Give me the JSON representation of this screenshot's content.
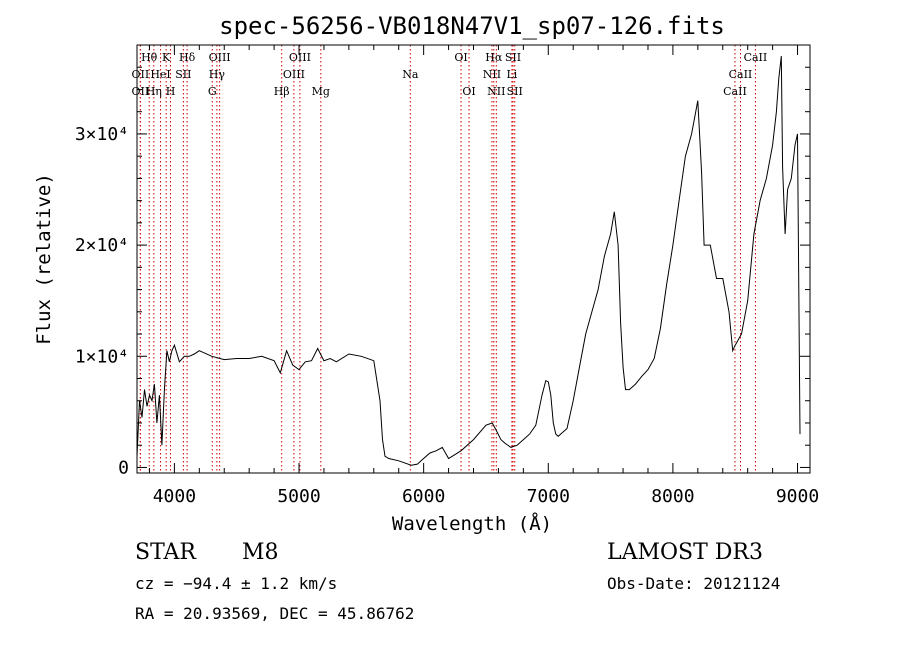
{
  "chart_data": {
    "type": "line",
    "title": "spec-56256-VB018N47V1_sp07-126.fits",
    "xlabel": "Wavelength (Å)",
    "ylabel": "Flux (relative)",
    "xlim": [
      3700,
      9100
    ],
    "ylim": [
      -500,
      38000
    ],
    "x_ticks": [
      {
        "value": 4000,
        "label": "4000"
      },
      {
        "value": 5000,
        "label": "5000"
      },
      {
        "value": 6000,
        "label": "6000"
      },
      {
        "value": 7000,
        "label": "7000"
      },
      {
        "value": 8000,
        "label": "8000"
      },
      {
        "value": 9000,
        "label": "9000"
      }
    ],
    "y_ticks": [
      {
        "value": 0,
        "label": "0"
      },
      {
        "value": 10000,
        "label": "1×10⁴"
      },
      {
        "value": 20000,
        "label": "2×10⁴"
      },
      {
        "value": 30000,
        "label": "3×10⁴"
      }
    ],
    "series": [
      {
        "name": "spectrum",
        "x": [
          3700,
          3720,
          3740,
          3760,
          3780,
          3800,
          3820,
          3840,
          3860,
          3880,
          3900,
          3920,
          3940,
          3960,
          3980,
          4000,
          4040,
          4080,
          4120,
          4160,
          4200,
          4300,
          4400,
          4500,
          4600,
          4700,
          4800,
          4850,
          4900,
          4950,
          5000,
          5050,
          5100,
          5150,
          5200,
          5250,
          5300,
          5400,
          5500,
          5600,
          5650,
          5670,
          5690,
          5720,
          5800,
          5900,
          5950,
          6000,
          6050,
          6100,
          6150,
          6200,
          6300,
          6400,
          6500,
          6550,
          6580,
          6620,
          6650,
          6700,
          6750,
          6800,
          6850,
          6900,
          6950,
          6980,
          7000,
          7020,
          7040,
          7060,
          7080,
          7100,
          7150,
          7200,
          7250,
          7300,
          7350,
          7400,
          7450,
          7500,
          7530,
          7560,
          7580,
          7600,
          7620,
          7650,
          7700,
          7750,
          7800,
          7850,
          7900,
          7950,
          8000,
          8050,
          8100,
          8150,
          8200,
          8230,
          8250,
          8300,
          8350,
          8400,
          8450,
          8480,
          8500,
          8550,
          8600,
          8650,
          8700,
          8750,
          8800,
          8830,
          8850,
          8870,
          8880,
          8900,
          8920,
          8950,
          8980,
          9000,
          9020
        ],
        "y": [
          1000,
          6000,
          4500,
          7000,
          5500,
          6500,
          6000,
          7500,
          4000,
          6500,
          2000,
          7000,
          10500,
          9500,
          10500,
          11000,
          9500,
          10000,
          10000,
          10200,
          10500,
          10000,
          9700,
          9800,
          9800,
          10000,
          9600,
          8500,
          10500,
          9200,
          8800,
          9500,
          9600,
          10700,
          9600,
          9800,
          9500,
          10200,
          10000,
          9600,
          6000,
          2500,
          1000,
          800,
          600,
          200,
          300,
          800,
          1300,
          1500,
          1800,
          800,
          1500,
          2500,
          3800,
          4000,
          3400,
          2500,
          2200,
          1800,
          2000,
          2500,
          3000,
          3800,
          6500,
          7800,
          7700,
          6500,
          4000,
          3000,
          2800,
          3000,
          3500,
          6000,
          9000,
          12000,
          14000,
          16000,
          19000,
          21000,
          23000,
          20000,
          13000,
          9000,
          7000,
          7000,
          7500,
          8200,
          8800,
          9800,
          12500,
          16500,
          20000,
          24000,
          28000,
          30000,
          33000,
          26500,
          20000,
          20000,
          17000,
          17000,
          14000,
          10500,
          11000,
          12000,
          15000,
          21000,
          24000,
          26000,
          29000,
          32000,
          35000,
          37000,
          27000,
          21000,
          25000,
          26000,
          29000,
          30000,
          3000
        ]
      }
    ],
    "lines": [
      {
        "label": "Hθ",
        "wave": 3798,
        "row": 1
      },
      {
        "label": "OII",
        "wave": 3727,
        "row": 2
      },
      {
        "label": "OII",
        "wave": 3727,
        "row": 3
      },
      {
        "label": "K",
        "wave": 3934,
        "row": 1
      },
      {
        "label": "HeI",
        "wave": 3889,
        "row": 2
      },
      {
        "label": "Hη",
        "wave": 3835,
        "row": 3
      },
      {
        "label": "H",
        "wave": 3969,
        "row": 3
      },
      {
        "label": "Hδ",
        "wave": 4102,
        "row": 1
      },
      {
        "label": "SII",
        "wave": 4072,
        "row": 2
      },
      {
        "label": "OIII",
        "wave": 4363,
        "row": 1
      },
      {
        "label": "Hγ",
        "wave": 4341,
        "row": 2
      },
      {
        "label": "G",
        "wave": 4304,
        "row": 3
      },
      {
        "label": "OIII",
        "wave": 5007,
        "row": 1
      },
      {
        "label": "OIII",
        "wave": 4959,
        "row": 2
      },
      {
        "label": "Hβ",
        "wave": 4861,
        "row": 3
      },
      {
        "label": "Mg",
        "wave": 5175,
        "row": 3
      },
      {
        "label": "Na",
        "wave": 5893,
        "row": 2
      },
      {
        "label": "OI",
        "wave": 6300,
        "row": 1
      },
      {
        "label": "OI",
        "wave": 6364,
        "row": 3
      },
      {
        "label": "Hα",
        "wave": 6563,
        "row": 1
      },
      {
        "label": "SII",
        "wave": 6717,
        "row": 1
      },
      {
        "label": "NII",
        "wave": 6548,
        "row": 2
      },
      {
        "label": "Li",
        "wave": 6708,
        "row": 2
      },
      {
        "label": "NII",
        "wave": 6583,
        "row": 3
      },
      {
        "label": "SII",
        "wave": 6731,
        "row": 3
      },
      {
        "label": "CaII",
        "wave": 8662,
        "row": 1
      },
      {
        "label": "CaII",
        "wave": 8542,
        "row": 2
      },
      {
        "label": "CaII",
        "wave": 8498,
        "row": 3
      }
    ],
    "line_color": "#cc0000"
  },
  "info": {
    "object_class": "STAR",
    "subclass": "M8",
    "survey": "LAMOST DR3",
    "redshift": "cz = −94.4 ± 1.2 km/s",
    "obs_date": "Obs-Date: 20121124",
    "coords": "RA =  20.93569, DEC =  45.86762"
  }
}
